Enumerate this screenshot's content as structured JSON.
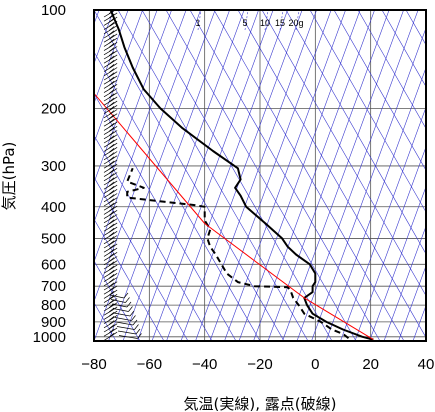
{
  "chart_data": {
    "type": "line",
    "xlabel": "気温(実線), 露点(破線)",
    "ylabel": "気圧(hPa)",
    "xlim": [
      -80,
      40
    ],
    "ylim": [
      1030,
      100
    ],
    "y_scale": "log",
    "grid": true,
    "x_ticks": [
      "−80",
      "−60",
      "−40",
      "−20",
      "0",
      "20",
      "40"
    ],
    "y_ticks": [
      "100",
      "200",
      "300",
      "400",
      "500",
      "600",
      "700",
      "800",
      "900",
      "1000"
    ],
    "mixing_ratio_labels": [
      "1",
      "5",
      "10",
      "15",
      "20g"
    ],
    "series": [
      {
        "style": "solid",
        "color": "#000000",
        "points": [
          [
            21,
            1020
          ],
          [
            17,
            1000
          ],
          [
            10,
            950
          ],
          [
            4,
            900
          ],
          [
            -1,
            850
          ],
          [
            -3,
            800
          ],
          [
            -4,
            760
          ],
          [
            -1,
            730
          ],
          [
            -1,
            700
          ],
          [
            0,
            680
          ],
          [
            0,
            640
          ],
          [
            -2,
            600
          ],
          [
            -7,
            560
          ],
          [
            -10,
            530
          ],
          [
            -12,
            500
          ],
          [
            -18,
            450
          ],
          [
            -25,
            400
          ],
          [
            -27,
            370
          ],
          [
            -29,
            350
          ],
          [
            -27,
            330
          ],
          [
            -28,
            305
          ],
          [
            -37,
            270
          ],
          [
            -48,
            230
          ],
          [
            -56,
            200
          ],
          [
            -62,
            175
          ],
          [
            -66,
            150
          ],
          [
            -69,
            130
          ],
          [
            -71,
            115
          ],
          [
            -74,
            100
          ]
        ]
      },
      {
        "style": "dashed",
        "color": "#000000",
        "points": [
          [
            12,
            1010
          ],
          [
            10,
            980
          ],
          [
            6,
            950
          ],
          [
            2,
            900
          ],
          [
            -4,
            850
          ],
          [
            -6,
            800
          ],
          [
            -8,
            760
          ],
          [
            -9,
            720
          ],
          [
            -10,
            705
          ],
          [
            -22,
            700
          ],
          [
            -28,
            680
          ],
          [
            -32,
            640
          ],
          [
            -36,
            560
          ],
          [
            -38,
            530
          ],
          [
            -39,
            500
          ],
          [
            -38,
            470
          ],
          [
            -40,
            440
          ],
          [
            -40,
            400
          ],
          [
            -44,
            395
          ],
          [
            -68,
            375
          ],
          [
            -68,
            360
          ],
          [
            -62,
            350
          ],
          [
            -68,
            335
          ],
          [
            -66,
            305
          ]
        ]
      },
      {
        "style": "solid",
        "color": "#ff0000",
        "points": [
          [
            21,
            1020
          ],
          [
            -4,
            760
          ],
          [
            -40,
            450
          ],
          [
            -80,
            180
          ]
        ]
      }
    ]
  }
}
